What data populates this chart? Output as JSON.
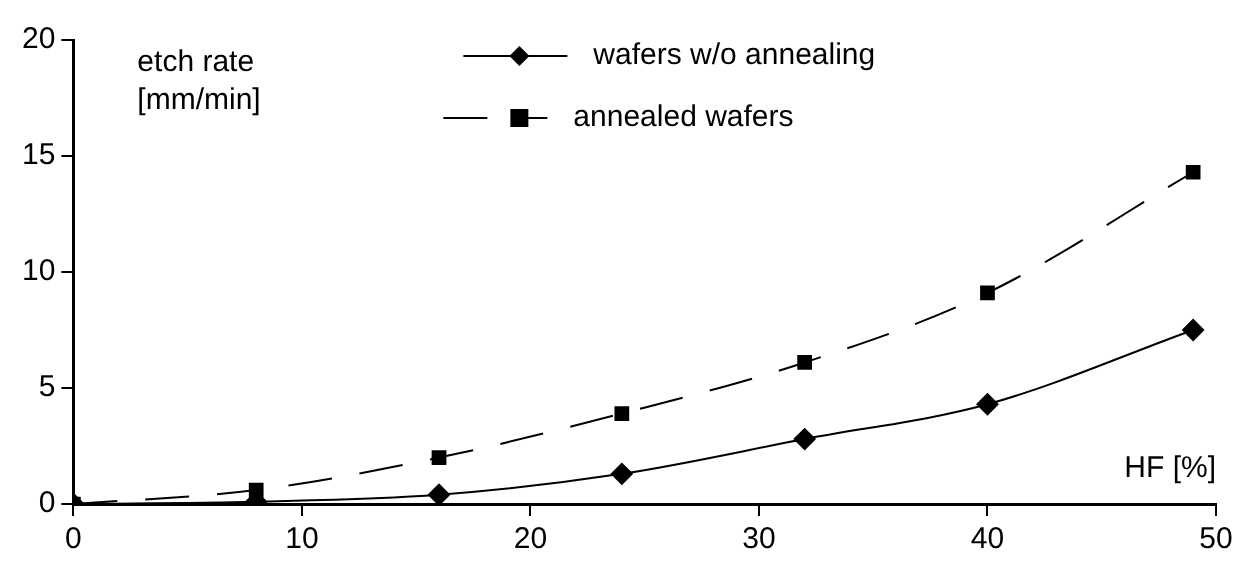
{
  "chart_data": {
    "type": "line",
    "xlabel": "HF [%]",
    "ylabel": "etch rate\n[mm/min]",
    "x": [
      0,
      8,
      16,
      24,
      32,
      40,
      49
    ],
    "series": [
      {
        "name": "wafers w/o annealing",
        "color": "#000000",
        "values": [
          0,
          0.1,
          0.4,
          1.3,
          2.8,
          4.3,
          7.5
        ],
        "marker": "diamond",
        "line_style": "solid"
      },
      {
        "name": "annealed wafers",
        "color": "#000000",
        "values": [
          0,
          0.6,
          2.0,
          3.9,
          6.1,
          9.1,
          14.3
        ],
        "marker": "square",
        "line_style": "dashed"
      }
    ],
    "xlim": [
      0,
      50
    ],
    "xticks": [
      0,
      10,
      20,
      30,
      40,
      50
    ],
    "ylim": [
      0,
      20
    ],
    "yticks": [
      0,
      5,
      10,
      15,
      20
    ],
    "grid": false,
    "legend": "top"
  }
}
